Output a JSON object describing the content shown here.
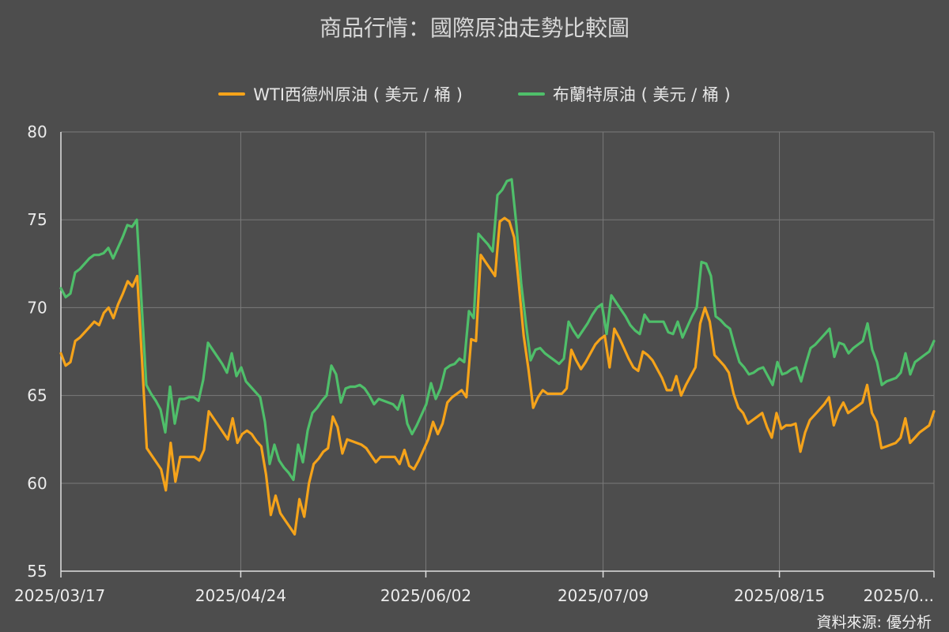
{
  "chart_data": {
    "type": "line",
    "title": "商品行情：國際原油走勢比較圖",
    "source": "資料來源: 優分析",
    "ylim": [
      55,
      80
    ],
    "yticks": [
      "55",
      "60",
      "65",
      "70",
      "75",
      "80"
    ],
    "xticks": [
      "2025/03/17",
      "2025/04/24",
      "2025/06/02",
      "2025/07/09",
      "2025/08/15",
      "2025/0..."
    ],
    "grid": true,
    "legend_position": "top-center",
    "colors": {
      "background": "#4d4d4d",
      "grid": "#7a7a7a",
      "wti": "#f5a31a",
      "brent": "#4fbf6a"
    },
    "series": [
      {
        "name": "WTI西德州原油 ( 美元 / 桶 )",
        "color": "#f5a31a",
        "values": [
          67.4,
          66.7,
          66.9,
          68.1,
          68.3,
          68.6,
          68.9,
          69.2,
          69.0,
          69.7,
          70.0,
          69.4,
          70.2,
          70.8,
          71.5,
          71.2,
          71.8,
          67.0,
          62.0,
          61.6,
          61.2,
          60.8,
          59.6,
          62.3,
          60.1,
          61.5,
          61.5,
          61.5,
          61.5,
          61.3,
          61.9,
          64.1,
          63.7,
          63.3,
          62.9,
          62.5,
          63.7,
          62.3,
          62.8,
          63.0,
          62.8,
          62.4,
          62.1,
          60.5,
          58.2,
          59.3,
          58.3,
          57.9,
          57.5,
          57.1,
          59.1,
          58.1,
          60.0,
          61.1,
          61.4,
          61.8,
          62.0,
          63.8,
          63.2,
          61.7,
          62.5,
          62.4,
          62.3,
          62.2,
          62.0,
          61.6,
          61.2,
          61.5,
          61.5,
          61.5,
          61.5,
          61.1,
          61.9,
          61.0,
          60.8,
          61.3,
          61.9,
          62.5,
          63.5,
          62.8,
          63.4,
          64.6,
          64.9,
          65.1,
          65.3,
          64.9,
          68.2,
          68.1,
          73.0,
          72.6,
          72.2,
          71.8,
          74.9,
          75.1,
          74.9,
          74.0,
          71.3,
          68.4,
          66.5,
          64.3,
          64.9,
          65.3,
          65.1,
          65.1,
          65.1,
          65.1,
          65.4,
          67.6,
          67.0,
          66.5,
          66.9,
          67.4,
          67.9,
          68.2,
          68.4,
          66.6,
          68.8,
          68.3,
          67.7,
          67.1,
          66.6,
          66.4,
          67.5,
          67.3,
          67.0,
          66.5,
          66.0,
          65.3,
          65.3,
          66.1,
          65.0,
          65.6,
          66.1,
          66.6,
          69.1,
          70.0,
          69.2,
          67.3,
          67.0,
          66.7,
          66.3,
          65.1,
          64.3,
          64.0,
          63.4,
          63.6,
          63.8,
          64.0,
          63.2,
          62.6,
          64.0,
          63.1,
          63.3,
          63.3,
          63.4,
          61.8,
          62.9,
          63.6,
          63.9,
          64.2,
          64.5,
          64.9,
          63.3,
          64.1,
          64.6,
          64.0,
          64.2,
          64.4,
          64.6,
          65.6,
          64.0,
          63.5,
          62.0,
          62.1,
          62.2,
          62.3,
          62.6,
          63.7,
          62.3,
          62.6,
          62.9,
          63.1,
          63.3,
          64.1
        ]
      },
      {
        "name": "布蘭特原油 ( 美元 / 桶 )",
        "color": "#4fbf6a",
        "values": [
          71.1,
          70.6,
          70.8,
          72.0,
          72.2,
          72.5,
          72.8,
          73.0,
          73.0,
          73.1,
          73.4,
          72.8,
          73.4,
          74.0,
          74.7,
          74.6,
          75.0,
          70.3,
          65.6,
          65.1,
          64.7,
          64.2,
          62.9,
          65.5,
          63.4,
          64.8,
          64.8,
          64.9,
          64.9,
          64.7,
          65.9,
          68.0,
          67.6,
          67.2,
          66.8,
          66.3,
          67.4,
          66.1,
          66.6,
          65.8,
          65.5,
          65.2,
          64.9,
          63.5,
          61.1,
          62.2,
          61.3,
          60.9,
          60.6,
          60.2,
          62.2,
          61.2,
          63.0,
          64.0,
          64.3,
          64.7,
          65.0,
          66.7,
          66.2,
          64.6,
          65.4,
          65.5,
          65.5,
          65.6,
          65.4,
          65.0,
          64.5,
          64.8,
          64.7,
          64.6,
          64.5,
          64.2,
          65.0,
          63.4,
          62.8,
          63.3,
          63.9,
          64.5,
          65.7,
          64.8,
          65.4,
          66.5,
          66.7,
          66.8,
          67.1,
          66.9,
          69.8,
          69.4,
          74.2,
          73.9,
          73.6,
          73.2,
          76.4,
          76.7,
          77.2,
          77.3,
          74.7,
          71.4,
          69.1,
          67.0,
          67.6,
          67.7,
          67.4,
          67.2,
          67.0,
          66.8,
          67.1,
          69.2,
          68.7,
          68.3,
          68.7,
          69.1,
          69.6,
          70.0,
          70.2,
          68.5,
          70.7,
          70.3,
          69.9,
          69.5,
          69.0,
          68.7,
          68.5,
          69.6,
          69.2,
          69.2,
          69.2,
          69.2,
          68.6,
          68.5,
          69.2,
          68.3,
          68.9,
          69.5,
          70.0,
          72.6,
          72.5,
          71.8,
          69.5,
          69.3,
          69.0,
          68.8,
          67.8,
          66.9,
          66.6,
          66.2,
          66.3,
          66.5,
          66.6,
          66.1,
          65.6,
          66.9,
          66.2,
          66.3,
          66.5,
          66.6,
          65.8,
          66.8,
          67.7,
          67.9,
          68.2,
          68.5,
          68.8,
          67.2,
          68.0,
          67.9,
          67.4,
          67.7,
          67.9,
          68.1,
          69.1,
          67.6,
          66.9,
          65.6,
          65.8,
          65.9,
          66.0,
          66.3,
          67.4,
          66.2,
          66.9,
          67.1,
          67.3,
          67.5,
          68.1
        ]
      }
    ]
  }
}
